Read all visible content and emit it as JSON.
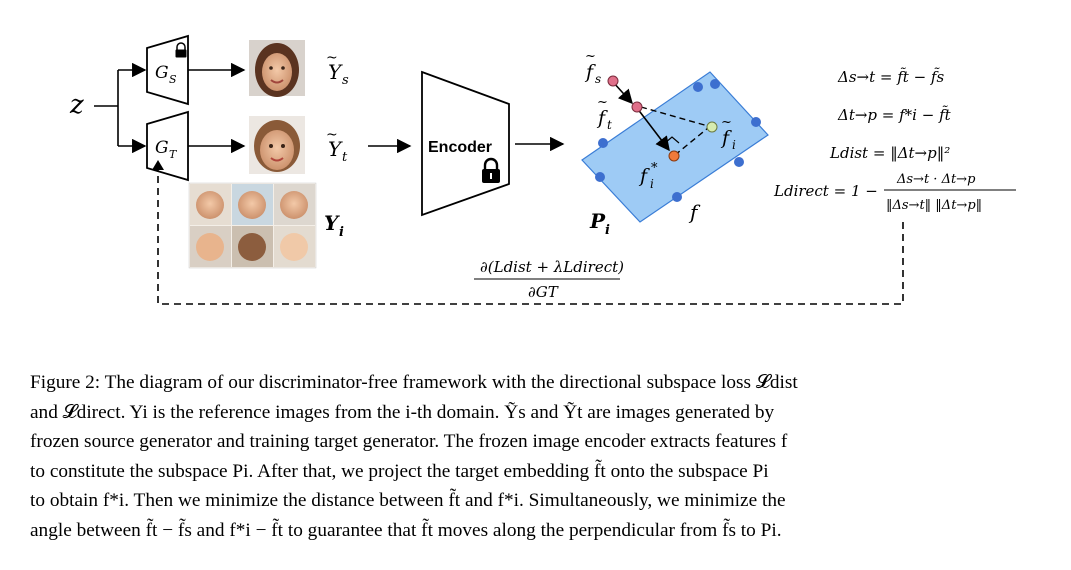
{
  "figure": {
    "input_label": "z",
    "gen_source_label": "G",
    "gen_source_sub": "S",
    "gen_target_label": "G",
    "gen_target_sub": "T",
    "out_source_label": "Y",
    "out_source_sub": "s",
    "out_target_label": "Y",
    "out_target_sub": "t",
    "ref_label": "Y",
    "ref_sub": "i",
    "encoder_label": "Encoder",
    "subspace_label": "P",
    "subspace_sub": "i",
    "feature_label": "f",
    "pt_fs": "f",
    "pt_fs_sub": "s",
    "pt_ft": "f",
    "pt_ft_sub": "t",
    "pt_fi": "f",
    "pt_fi_sub": "i",
    "pt_fstar": "f",
    "pt_fstar_sup": "*",
    "pt_fstar_sub": "i",
    "eq1": "Δs→t = f̃t − f̃s",
    "eq2": "Δt→p = f*i − f̃t",
    "eq3": "Ldist = ‖Δt→p‖²",
    "eq4_lhs": "Ldirect = 1 −",
    "eq4_num": "Δs→t · Δt→p",
    "eq4_den": "‖Δs→t‖ ‖Δt→p‖",
    "grad_num": "∂(Ldist + λLdirect)",
    "grad_den": "∂GT",
    "colors": {
      "plane_fill": "#9ecbf5",
      "plane_stroke": "#3a7dd6",
      "dot_blue": "#3d6fcf",
      "dot_source": "#e0708a",
      "dot_projection": "#f07a3a",
      "dot_target_green": "#d6ecb0"
    },
    "icons": [
      "lock-icon",
      "face-image"
    ]
  },
  "caption": {
    "lines": [
      "Figure 2: The diagram of our discriminator-free framework with the directional subspace loss 𝓛dist",
      "and 𝓛direct. Yi is the reference images from the i-th domain. Ỹs and Ỹt are images generated by",
      "frozen source generator and training target generator. The frozen image encoder extracts features f",
      "to constitute the subspace Pi. After that, we project the target embedding f̃t onto the subspace Pi",
      "to obtain f*i. Then we minimize the distance between f̃t and f*i. Simultaneously, we minimize the",
      "angle between f̃t − f̃s and f*i − f̃t to guarantee that f̃t moves along the perpendicular from f̃s to Pi."
    ]
  }
}
